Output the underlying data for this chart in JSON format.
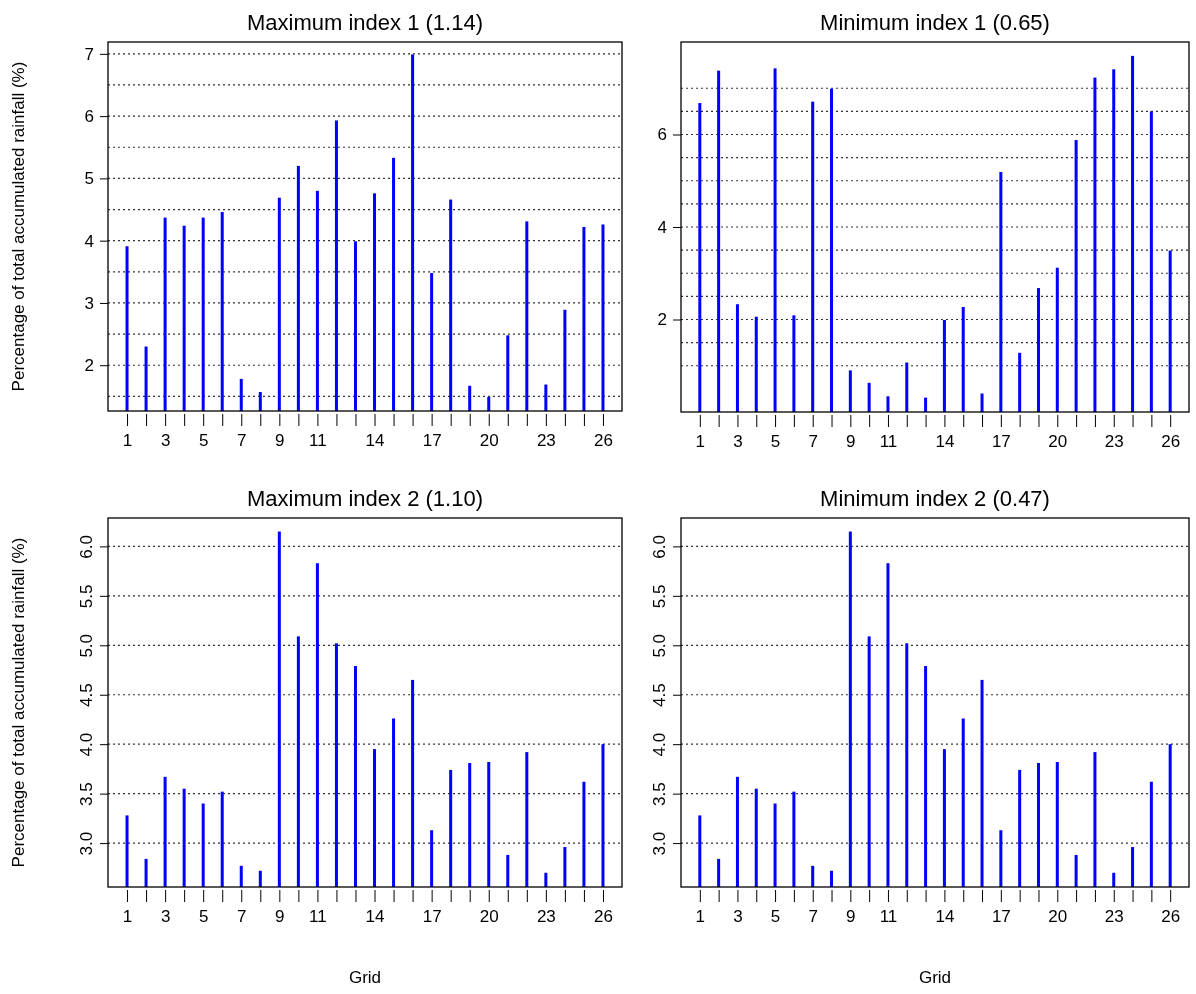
{
  "chart_data": [
    {
      "type": "bar",
      "title": "Maximum index 1 (1.14)",
      "ylabel": "Percentage of total accumulated rainfall (%)",
      "color": "#0000ff",
      "grid": "y",
      "xlim": [
        0,
        27
      ],
      "ylim": [
        1.265,
        7.19
      ],
      "xticks": [
        1,
        {
          "value": 2,
          "label": null
        },
        3,
        {
          "value": 4,
          "label": null
        },
        5,
        {
          "value": 6,
          "label": null
        },
        7,
        {
          "value": 8,
          "label": null
        },
        9,
        {
          "value": 10,
          "label": null
        },
        11,
        {
          "value": 12,
          "label": null
        },
        {
          "value": 13,
          "label": null
        },
        14,
        {
          "value": 15,
          "label": null
        },
        {
          "value": 16,
          "label": null
        },
        17,
        {
          "value": 18,
          "label": null
        },
        {
          "value": 19,
          "label": null
        },
        20,
        {
          "value": 21,
          "label": null
        },
        {
          "value": 22,
          "label": null
        },
        23,
        {
          "value": 24,
          "label": null
        },
        {
          "value": 25,
          "label": null
        },
        26
      ],
      "yticks": [
        {
          "value": 1.5,
          "label": null
        },
        2,
        {
          "value": 2.5,
          "label": null
        },
        3,
        {
          "value": 3.5,
          "label": null
        },
        4,
        {
          "value": 4.5,
          "label": null
        },
        5,
        {
          "value": 5.5,
          "label": null
        },
        6,
        {
          "value": 6.5,
          "label": null
        },
        7
      ],
      "x": [
        1,
        2,
        3,
        4,
        5,
        6,
        7,
        8,
        9,
        10,
        11,
        12,
        13,
        14,
        15,
        16,
        17,
        18,
        19,
        20,
        21,
        22,
        23,
        24,
        25,
        26
      ],
      "values": [
        3.91,
        2.3,
        4.37,
        4.24,
        4.37,
        4.46,
        1.78,
        1.57,
        4.69,
        5.2,
        4.8,
        5.93,
        3.99,
        4.76,
        5.33,
        6.99,
        3.48,
        4.66,
        1.67,
        1.49,
        2.48,
        4.31,
        1.69,
        2.89,
        4.22,
        4.26
      ]
    },
    {
      "type": "bar",
      "title": "Minimum index 1 (0.65)",
      "color": "#0000ff",
      "grid": "y",
      "xlim": [
        0,
        27
      ],
      "ylim": [
        0,
        8
      ],
      "xticks": [
        1,
        {
          "value": 2,
          "label": null
        },
        3,
        {
          "value": 4,
          "label": null
        },
        5,
        {
          "value": 6,
          "label": null
        },
        7,
        {
          "value": 8,
          "label": null
        },
        9,
        {
          "value": 10,
          "label": null
        },
        11,
        {
          "value": 12,
          "label": null
        },
        {
          "value": 13,
          "label": null
        },
        14,
        {
          "value": 15,
          "label": null
        },
        {
          "value": 16,
          "label": null
        },
        17,
        {
          "value": 18,
          "label": null
        },
        {
          "value": 19,
          "label": null
        },
        20,
        {
          "value": 21,
          "label": null
        },
        {
          "value": 22,
          "label": null
        },
        23,
        {
          "value": 24,
          "label": null
        },
        {
          "value": 25,
          "label": null
        },
        26
      ],
      "yticks": [
        {
          "value": 1,
          "label": null
        },
        {
          "value": 1.5,
          "label": null
        },
        2,
        {
          "value": 2.5,
          "label": null
        },
        {
          "value": 3,
          "label": null
        },
        {
          "value": 3.5,
          "label": null
        },
        4,
        {
          "value": 4.5,
          "label": null
        },
        {
          "value": 5,
          "label": null
        },
        {
          "value": 5.5,
          "label": null
        },
        6,
        {
          "value": 6.5,
          "label": null
        },
        {
          "value": 7,
          "label": null
        }
      ],
      "x": [
        1,
        2,
        3,
        4,
        5,
        6,
        7,
        8,
        9,
        10,
        11,
        12,
        13,
        14,
        15,
        16,
        17,
        18,
        19,
        20,
        21,
        22,
        23,
        24,
        25,
        26
      ],
      "values": [
        6.68,
        7.38,
        2.33,
        2.06,
        7.43,
        2.09,
        6.71,
        6.99,
        0.9,
        0.63,
        0.34,
        1.07,
        0.31,
        1.99,
        2.27,
        0.4,
        5.19,
        1.28,
        2.68,
        3.12,
        5.88,
        7.23,
        7.41,
        7.7,
        6.5,
        3.49
      ]
    },
    {
      "type": "bar",
      "title": "Maximum index 2 (1.10)",
      "ylabel": "Percentage of total accumulated rainfall (%)",
      "xlabel": "Grid",
      "color": "#0000ff",
      "grid": "y",
      "xlim": [
        0,
        27
      ],
      "ylim": [
        2.556,
        6.287
      ],
      "xticks": [
        1,
        {
          "value": 2,
          "label": null
        },
        3,
        {
          "value": 4,
          "label": null
        },
        5,
        {
          "value": 6,
          "label": null
        },
        7,
        {
          "value": 8,
          "label": null
        },
        9,
        {
          "value": 10,
          "label": null
        },
        11,
        {
          "value": 12,
          "label": null
        },
        {
          "value": 13,
          "label": null
        },
        14,
        {
          "value": 15,
          "label": null
        },
        {
          "value": 16,
          "label": null
        },
        17,
        {
          "value": 18,
          "label": null
        },
        {
          "value": 19,
          "label": null
        },
        20,
        {
          "value": 21,
          "label": null
        },
        {
          "value": 22,
          "label": null
        },
        23,
        {
          "value": 24,
          "label": null
        },
        {
          "value": 25,
          "label": null
        },
        26
      ],
      "yticks": [
        {
          "value": 3,
          "label": "3.0"
        },
        3.5,
        {
          "value": 4,
          "label": "4.0"
        },
        4.5,
        {
          "value": 5,
          "label": "5.0"
        },
        5.5,
        {
          "value": 6,
          "label": "6.0"
        }
      ],
      "x": [
        1,
        2,
        3,
        4,
        5,
        6,
        7,
        8,
        9,
        10,
        11,
        12,
        13,
        14,
        15,
        16,
        17,
        18,
        19,
        20,
        21,
        22,
        23,
        24,
        25,
        26
      ],
      "values": [
        3.28,
        2.84,
        3.67,
        3.55,
        3.4,
        3.52,
        2.77,
        2.72,
        6.15,
        5.09,
        5.83,
        5.02,
        4.79,
        3.95,
        4.26,
        4.65,
        3.13,
        3.74,
        3.81,
        3.82,
        2.88,
        3.92,
        2.7,
        2.96,
        3.62,
        4.0
      ]
    },
    {
      "type": "bar",
      "title": "Minimum index 2 (0.47)",
      "xlabel": "Grid",
      "color": "#0000ff",
      "grid": "y",
      "xlim": [
        0,
        27
      ],
      "ylim": [
        2.556,
        6.287
      ],
      "xticks": [
        1,
        {
          "value": 2,
          "label": null
        },
        3,
        {
          "value": 4,
          "label": null
        },
        5,
        {
          "value": 6,
          "label": null
        },
        7,
        {
          "value": 8,
          "label": null
        },
        9,
        {
          "value": 10,
          "label": null
        },
        11,
        {
          "value": 12,
          "label": null
        },
        {
          "value": 13,
          "label": null
        },
        14,
        {
          "value": 15,
          "label": null
        },
        {
          "value": 16,
          "label": null
        },
        17,
        {
          "value": 18,
          "label": null
        },
        {
          "value": 19,
          "label": null
        },
        20,
        {
          "value": 21,
          "label": null
        },
        {
          "value": 22,
          "label": null
        },
        23,
        {
          "value": 24,
          "label": null
        },
        {
          "value": 25,
          "label": null
        },
        26
      ],
      "yticks": [
        {
          "value": 3,
          "label": "3.0"
        },
        3.5,
        {
          "value": 4,
          "label": "4.0"
        },
        4.5,
        {
          "value": 5,
          "label": "5.0"
        },
        5.5,
        {
          "value": 6,
          "label": "6.0"
        }
      ],
      "x": [
        1,
        2,
        3,
        4,
        5,
        6,
        7,
        8,
        9,
        10,
        11,
        12,
        13,
        14,
        15,
        16,
        17,
        18,
        19,
        20,
        21,
        22,
        23,
        24,
        25,
        26
      ],
      "values": [
        3.28,
        2.84,
        3.67,
        3.55,
        3.4,
        3.52,
        2.77,
        2.72,
        6.15,
        5.09,
        5.83,
        5.02,
        4.79,
        3.95,
        4.26,
        4.65,
        3.13,
        3.74,
        3.81,
        3.82,
        2.88,
        3.92,
        2.7,
        2.96,
        3.62,
        4.0
      ]
    }
  ]
}
